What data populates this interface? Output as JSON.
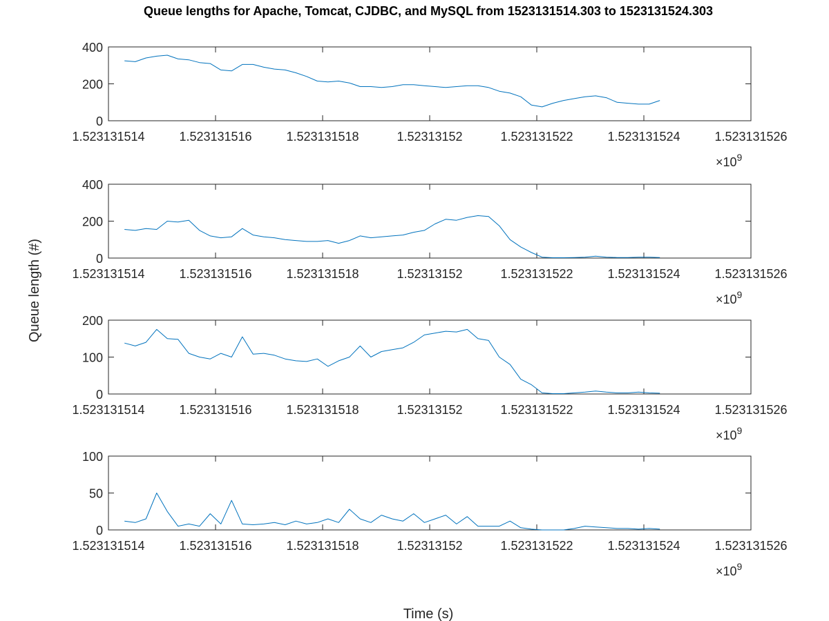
{
  "title": "Queue lengths for Apache, Tomcat, CJDBC, and MySQL from 1523131514.303 to 1523131524.303",
  "xlabel": "Time (s)",
  "ylabel": "Queue length (#)",
  "exponent_label": "×10",
  "exponent_power": "9",
  "line_color": "#0072BD",
  "chart_data": [
    {
      "type": "line",
      "xlim": [
        1523131514,
        1523131526
      ],
      "ylim": [
        0,
        400
      ],
      "x_ticks": [
        "1.523131514",
        "1.523131516",
        "1.523131518",
        "1.52313152",
        "1.523131522",
        "1.523131524",
        "1.523131526"
      ],
      "y_ticks": [
        "0",
        "200",
        "400"
      ],
      "x": [
        1523131514.3,
        1523131514.5,
        1523131514.7,
        1523131514.9,
        1523131515.1,
        1523131515.3,
        1523131515.5,
        1523131515.7,
        1523131515.9,
        1523131516.1,
        1523131516.3,
        1523131516.5,
        1523131516.7,
        1523131516.9,
        1523131517.1,
        1523131517.3,
        1523131517.5,
        1523131517.7,
        1523131517.9,
        1523131518.1,
        1523131518.3,
        1523131518.5,
        1523131518.7,
        1523131518.9,
        1523131519.1,
        1523131519.3,
        1523131519.5,
        1523131519.7,
        1523131519.9,
        1523131520.1,
        1523131520.3,
        1523131520.5,
        1523131520.7,
        1523131520.9,
        1523131521.1,
        1523131521.3,
        1523131521.5,
        1523131521.7,
        1523131521.9,
        1523131522.1,
        1523131522.3,
        1523131522.5,
        1523131522.7,
        1523131522.9,
        1523131523.1,
        1523131523.3,
        1523131523.5,
        1523131523.7,
        1523131523.9,
        1523131524.1,
        1523131524.3
      ],
      "y": [
        325,
        320,
        340,
        350,
        355,
        335,
        330,
        315,
        310,
        275,
        270,
        305,
        305,
        290,
        280,
        275,
        260,
        240,
        215,
        210,
        215,
        205,
        185,
        185,
        180,
        185,
        195,
        195,
        190,
        185,
        180,
        185,
        190,
        190,
        180,
        160,
        150,
        130,
        85,
        75,
        95,
        110,
        120,
        130,
        135,
        125,
        100,
        95,
        90,
        90,
        110
      ]
    },
    {
      "type": "line",
      "xlim": [
        1523131514,
        1523131526
      ],
      "ylim": [
        0,
        400
      ],
      "x_ticks": [
        "1.523131514",
        "1.523131516",
        "1.523131518",
        "1.52313152",
        "1.523131522",
        "1.523131524",
        "1.523131526"
      ],
      "y_ticks": [
        "0",
        "200",
        "400"
      ],
      "x": [
        1523131514.3,
        1523131514.5,
        1523131514.7,
        1523131514.9,
        1523131515.1,
        1523131515.3,
        1523131515.5,
        1523131515.7,
        1523131515.9,
        1523131516.1,
        1523131516.3,
        1523131516.5,
        1523131516.7,
        1523131516.9,
        1523131517.1,
        1523131517.3,
        1523131517.5,
        1523131517.7,
        1523131517.9,
        1523131518.1,
        1523131518.3,
        1523131518.5,
        1523131518.7,
        1523131518.9,
        1523131519.1,
        1523131519.3,
        1523131519.5,
        1523131519.7,
        1523131519.9,
        1523131520.1,
        1523131520.3,
        1523131520.5,
        1523131520.7,
        1523131520.9,
        1523131521.1,
        1523131521.3,
        1523131521.5,
        1523131521.7,
        1523131521.9,
        1523131522.1,
        1523131522.3,
        1523131522.5,
        1523131522.7,
        1523131522.9,
        1523131523.1,
        1523131523.3,
        1523131523.5,
        1523131523.7,
        1523131523.9,
        1523131524.1,
        1523131524.3
      ],
      "y": [
        155,
        150,
        160,
        155,
        200,
        195,
        205,
        150,
        120,
        110,
        115,
        160,
        125,
        115,
        110,
        100,
        95,
        90,
        90,
        95,
        80,
        95,
        120,
        110,
        115,
        120,
        125,
        140,
        150,
        185,
        210,
        205,
        220,
        230,
        225,
        175,
        100,
        60,
        30,
        5,
        2,
        2,
        3,
        5,
        10,
        5,
        3,
        3,
        5,
        5,
        3
      ]
    },
    {
      "type": "line",
      "xlim": [
        1523131514,
        1523131526
      ],
      "ylim": [
        0,
        200
      ],
      "x_ticks": [
        "1.523131514",
        "1.523131516",
        "1.523131518",
        "1.52313152",
        "1.523131522",
        "1.523131524",
        "1.523131526"
      ],
      "y_ticks": [
        "0",
        "100",
        "200"
      ],
      "x": [
        1523131514.3,
        1523131514.5,
        1523131514.7,
        1523131514.9,
        1523131515.1,
        1523131515.3,
        1523131515.5,
        1523131515.7,
        1523131515.9,
        1523131516.1,
        1523131516.3,
        1523131516.5,
        1523131516.7,
        1523131516.9,
        1523131517.1,
        1523131517.3,
        1523131517.5,
        1523131517.7,
        1523131517.9,
        1523131518.1,
        1523131518.3,
        1523131518.5,
        1523131518.7,
        1523131518.9,
        1523131519.1,
        1523131519.3,
        1523131519.5,
        1523131519.7,
        1523131519.9,
        1523131520.1,
        1523131520.3,
        1523131520.5,
        1523131520.7,
        1523131520.9,
        1523131521.1,
        1523131521.3,
        1523131521.5,
        1523131521.7,
        1523131521.9,
        1523131522.1,
        1523131522.3,
        1523131522.5,
        1523131522.7,
        1523131522.9,
        1523131523.1,
        1523131523.3,
        1523131523.5,
        1523131523.7,
        1523131523.9,
        1523131524.1,
        1523131524.3
      ],
      "y": [
        138,
        130,
        140,
        175,
        150,
        148,
        110,
        100,
        95,
        110,
        100,
        155,
        108,
        110,
        105,
        95,
        90,
        88,
        95,
        75,
        90,
        100,
        130,
        100,
        115,
        120,
        125,
        140,
        160,
        165,
        170,
        168,
        175,
        150,
        145,
        100,
        80,
        40,
        25,
        3,
        1,
        1,
        3,
        5,
        8,
        5,
        3,
        3,
        5,
        3,
        2
      ]
    },
    {
      "type": "line",
      "xlim": [
        1523131514,
        1523131526
      ],
      "ylim": [
        0,
        100
      ],
      "x_ticks": [
        "1.523131514",
        "1.523131516",
        "1.523131518",
        "1.52313152",
        "1.523131522",
        "1.523131524",
        "1.523131526"
      ],
      "y_ticks": [
        "0",
        "50",
        "100"
      ],
      "x": [
        1523131514.3,
        1523131514.5,
        1523131514.7,
        1523131514.9,
        1523131515.1,
        1523131515.3,
        1523131515.5,
        1523131515.7,
        1523131515.9,
        1523131516.1,
        1523131516.3,
        1523131516.5,
        1523131516.7,
        1523131516.9,
        1523131517.1,
        1523131517.3,
        1523131517.5,
        1523131517.7,
        1523131517.9,
        1523131518.1,
        1523131518.3,
        1523131518.5,
        1523131518.7,
        1523131518.9,
        1523131519.1,
        1523131519.3,
        1523131519.5,
        1523131519.7,
        1523131519.9,
        1523131520.1,
        1523131520.3,
        1523131520.5,
        1523131520.7,
        1523131520.9,
        1523131521.1,
        1523131521.3,
        1523131521.5,
        1523131521.7,
        1523131521.9,
        1523131522.1,
        1523131522.3,
        1523131522.5,
        1523131522.7,
        1523131522.9,
        1523131523.1,
        1523131523.3,
        1523131523.5,
        1523131523.7,
        1523131523.9,
        1523131524.1,
        1523131524.3
      ],
      "y": [
        12,
        10,
        15,
        50,
        25,
        5,
        8,
        5,
        22,
        8,
        40,
        8,
        7,
        8,
        10,
        7,
        12,
        8,
        10,
        15,
        10,
        28,
        15,
        10,
        20,
        15,
        12,
        22,
        10,
        15,
        20,
        8,
        18,
        5,
        5,
        5,
        12,
        3,
        1,
        0,
        0,
        0,
        2,
        5,
        4,
        3,
        2,
        2,
        1,
        2,
        1
      ]
    }
  ]
}
